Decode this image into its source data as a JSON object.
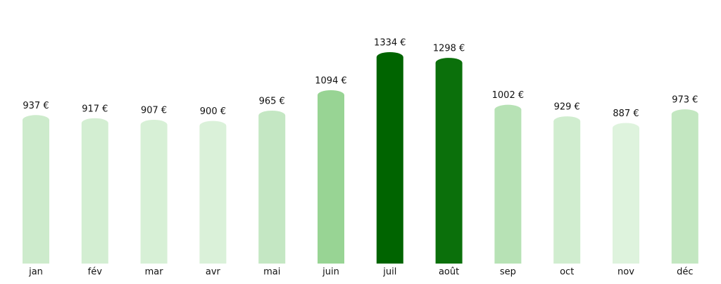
{
  "chart_data": {
    "type": "bar",
    "categories": [
      "jan",
      "fév",
      "mar",
      "avr",
      "mai",
      "juin",
      "juil",
      "août",
      "sep",
      "oct",
      "nov",
      "déc"
    ],
    "values": [
      937,
      917,
      907,
      900,
      965,
      1094,
      1334,
      1298,
      1002,
      929,
      887,
      973
    ],
    "value_labels": [
      "937 €",
      "917 €",
      "907 €",
      "900 €",
      "965 €",
      "1094 €",
      "1334 €",
      "1298 €",
      "1002 €",
      "929 €",
      "887 €",
      "973 €"
    ],
    "colors": [
      "#cdebcc",
      "#d3eed2",
      "#d7f0d6",
      "#daf1d9",
      "#c4e7c3",
      "#98d494",
      "#006400",
      "#0b700b",
      "#b7e2b5",
      "#d0edcf",
      "#def3dd",
      "#c3e7c1"
    ]
  }
}
